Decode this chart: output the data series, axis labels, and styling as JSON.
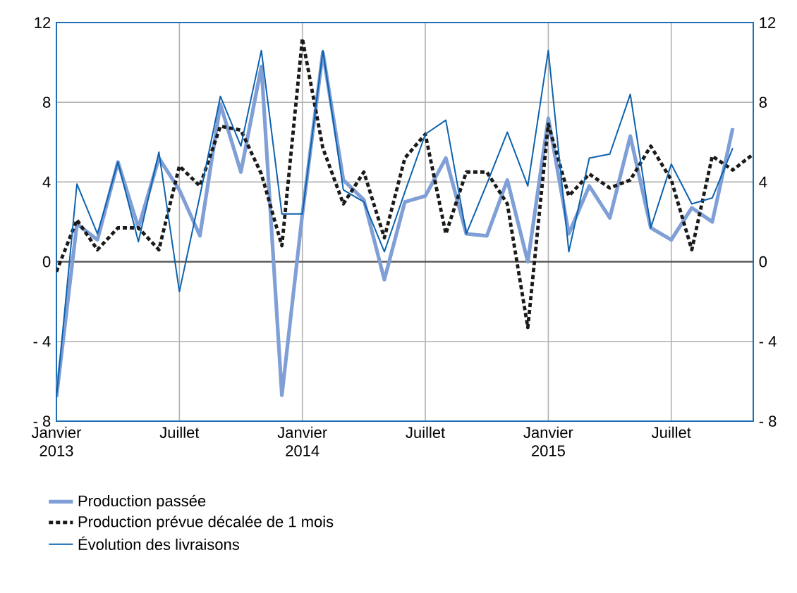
{
  "chart_data": {
    "type": "line",
    "x": [
      "2013-01",
      "2013-02",
      "2013-03",
      "2013-04",
      "2013-05",
      "2013-06",
      "2013-07",
      "2013-08",
      "2013-09",
      "2013-10",
      "2013-11",
      "2013-12",
      "2014-01",
      "2014-02",
      "2014-03",
      "2014-04",
      "2014-05",
      "2014-06",
      "2014-07",
      "2014-08",
      "2014-09",
      "2014-10",
      "2014-11",
      "2014-12",
      "2015-01",
      "2015-02",
      "2015-03",
      "2015-04",
      "2015-05",
      "2015-06",
      "2015-07",
      "2015-08",
      "2015-09",
      "2015-10"
    ],
    "series": [
      {
        "name": "Production passée",
        "color": "#7f9fd6",
        "values": [
          -6.8,
          1.9,
          1.1,
          5.0,
          1.7,
          5.2,
          3.6,
          1.3,
          7.9,
          4.5,
          9.8,
          -6.7,
          2.4,
          10.5,
          4.1,
          3.1,
          -0.9,
          3.0,
          3.3,
          5.2,
          1.4,
          1.3,
          4.1,
          0.0,
          7.2,
          1.4,
          3.8,
          2.2,
          6.3,
          1.7,
          1.1,
          2.7,
          2.0,
          6.7
        ]
      },
      {
        "name": "Production prévue décalée de 1 mois",
        "color": "#1a1a1a",
        "line_style": "dashed",
        "x": [
          "2013-01",
          "2013-02",
          "2013-03",
          "2013-04",
          "2013-05",
          "2013-06",
          "2013-07",
          "2013-08",
          "2013-09",
          "2013-10",
          "2013-11",
          "2013-12",
          "2014-01",
          "2014-02",
          "2014-03",
          "2014-04",
          "2014-05",
          "2014-06",
          "2014-07",
          "2014-08",
          "2014-09",
          "2014-10",
          "2014-11",
          "2014-12",
          "2015-01",
          "2015-02",
          "2015-03",
          "2015-04",
          "2015-05",
          "2015-06",
          "2015-07",
          "2015-08",
          "2015-09",
          "2015-10",
          "2015-11"
        ],
        "values": [
          -0.5,
          2.1,
          0.6,
          1.7,
          1.7,
          0.6,
          4.8,
          3.8,
          6.8,
          6.6,
          4.4,
          0.8,
          11.2,
          5.7,
          2.9,
          4.5,
          1.2,
          5.2,
          6.4,
          1.4,
          4.5,
          4.5,
          2.9,
          -3.3,
          6.9,
          3.3,
          4.4,
          3.7,
          4.1,
          5.8,
          4.1,
          0.6,
          5.3,
          4.6,
          5.4
        ]
      },
      {
        "name": "Évolution des livraisons",
        "color": "#0d62ad",
        "values": [
          -6.8,
          3.9,
          1.4,
          5.0,
          1.0,
          5.5,
          -1.5,
          3.3,
          8.3,
          5.8,
          10.6,
          2.4,
          2.4,
          10.6,
          3.6,
          3.0,
          0.5,
          3.5,
          6.4,
          7.1,
          1.4,
          3.9,
          6.5,
          3.8,
          10.6,
          0.5,
          5.2,
          5.4,
          8.4,
          1.7,
          4.9,
          2.9,
          3.2,
          5.7
        ]
      }
    ],
    "xlim": [
      "2013-01",
      "2015-11"
    ],
    "xticks": [
      {
        "value": "2013-01",
        "label": "Janvier 2013"
      },
      {
        "value": "2013-07",
        "label": "Juillet"
      },
      {
        "value": "2014-01",
        "label": "Janvier 2014"
      },
      {
        "value": "2014-07",
        "label": "Juillet"
      },
      {
        "value": "2015-01",
        "label": "Janvier 2015"
      },
      {
        "value": "2015-07",
        "label": "Juillet"
      }
    ],
    "ylim": [
      -8,
      12
    ],
    "yticks": [
      {
        "value": -8,
        "label": "- 8"
      },
      {
        "value": -4,
        "label": "- 4"
      },
      0,
      4,
      8,
      12
    ],
    "y2lim": [
      -8,
      12
    ],
    "y2ticks": [
      {
        "value": -8,
        "label": "- 8"
      },
      {
        "value": -4,
        "label": "- 4"
      },
      0,
      4,
      8,
      12
    ],
    "ref_lines": [
      {
        "axis": "y",
        "value": 0,
        "color": "#555555"
      }
    ],
    "grid": true,
    "legend": "bottom left"
  }
}
